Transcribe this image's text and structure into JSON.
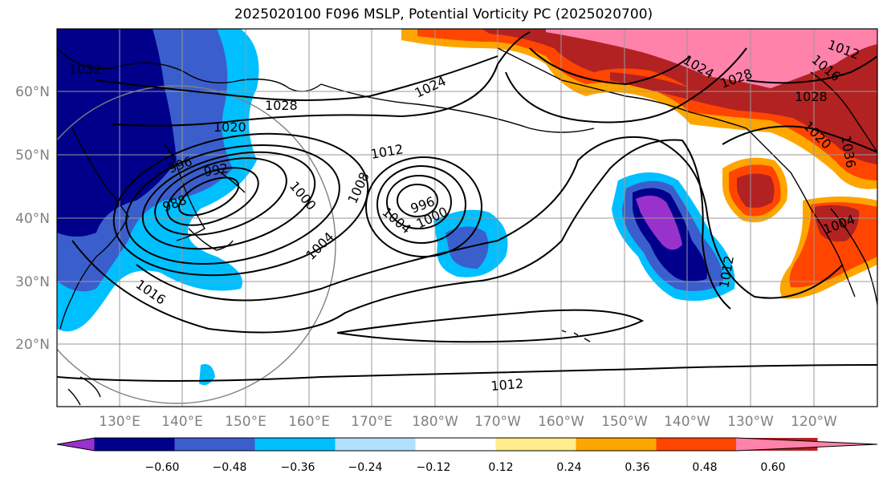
{
  "title": "2025020100 F096 MSLP, Potential Vorticity PC (2025020700)",
  "map": {
    "lat_labels": [
      "60°N",
      "50°N",
      "40°N",
      "30°N",
      "20°N"
    ],
    "lon_labels": [
      "130°E",
      "140°E",
      "150°E",
      "160°E",
      "170°E",
      "180°W",
      "170°W",
      "160°W",
      "150°W",
      "140°W",
      "130°W",
      "120°W"
    ],
    "contour_labels": [
      "1032",
      "1028",
      "1020",
      "1024",
      "1012",
      "992",
      "996",
      "988",
      "1000",
      "1008",
      "996",
      "1000",
      "1004",
      "1004",
      "1016",
      "1012",
      "1028",
      "1012",
      "1016",
      "1028",
      "1024",
      "1012",
      "1004",
      "1036",
      "1020"
    ],
    "projection_circle": true,
    "grid": true
  },
  "colorbar": {
    "ticks": [
      "−0.60",
      "−0.48",
      "−0.36",
      "−0.24",
      "−0.12",
      "0.12",
      "0.24",
      "0.36",
      "0.48",
      "0.60"
    ],
    "colors": [
      "#9932CC",
      "#00008B",
      "#3A5FCD",
      "#00BFFF",
      "#B0E2FF",
      "#FFFFFF",
      "#FFEC8B",
      "#FFA500",
      "#FF4500",
      "#B22222",
      "#FF82AB"
    ]
  }
}
